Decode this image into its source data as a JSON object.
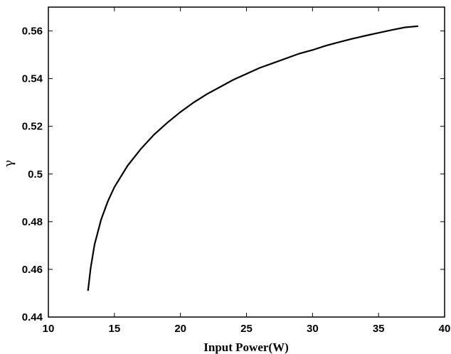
{
  "chart_data": {
    "type": "line",
    "title": "",
    "xlabel": "Input Power(W)",
    "ylabel": "γ",
    "xlim": [
      10,
      40
    ],
    "ylim": [
      0.44,
      0.57
    ],
    "xticks": [
      10,
      15,
      20,
      25,
      30,
      35,
      40
    ],
    "xtick_labels": [
      "10",
      "15",
      "20",
      "25",
      "30",
      "35",
      "40"
    ],
    "yticks": [
      0.44,
      0.46,
      0.48,
      0.5,
      0.52,
      0.54,
      0.56
    ],
    "ytick_labels": [
      "0.44",
      "0.46",
      "0.48",
      "0.5",
      "0.52",
      "0.54",
      "0.56"
    ],
    "grid": false,
    "line_color": "#000000",
    "series": [
      {
        "x": [
          13,
          13.2,
          13.5,
          14,
          14.5,
          15,
          16,
          17,
          18,
          19,
          20,
          21,
          22,
          23,
          24,
          25,
          26,
          27,
          28,
          29,
          30,
          31,
          32,
          33,
          34,
          35,
          36,
          37,
          38
        ],
        "y": [
          0.451,
          0.4605,
          0.4705,
          0.481,
          0.4885,
          0.4945,
          0.5035,
          0.5105,
          0.5165,
          0.5215,
          0.526,
          0.53,
          0.5335,
          0.5365,
          0.5395,
          0.542,
          0.5445,
          0.5465,
          0.5485,
          0.5505,
          0.552,
          0.5538,
          0.5553,
          0.5567,
          0.558,
          0.5592,
          0.5604,
          0.5615,
          0.562
        ]
      }
    ]
  }
}
